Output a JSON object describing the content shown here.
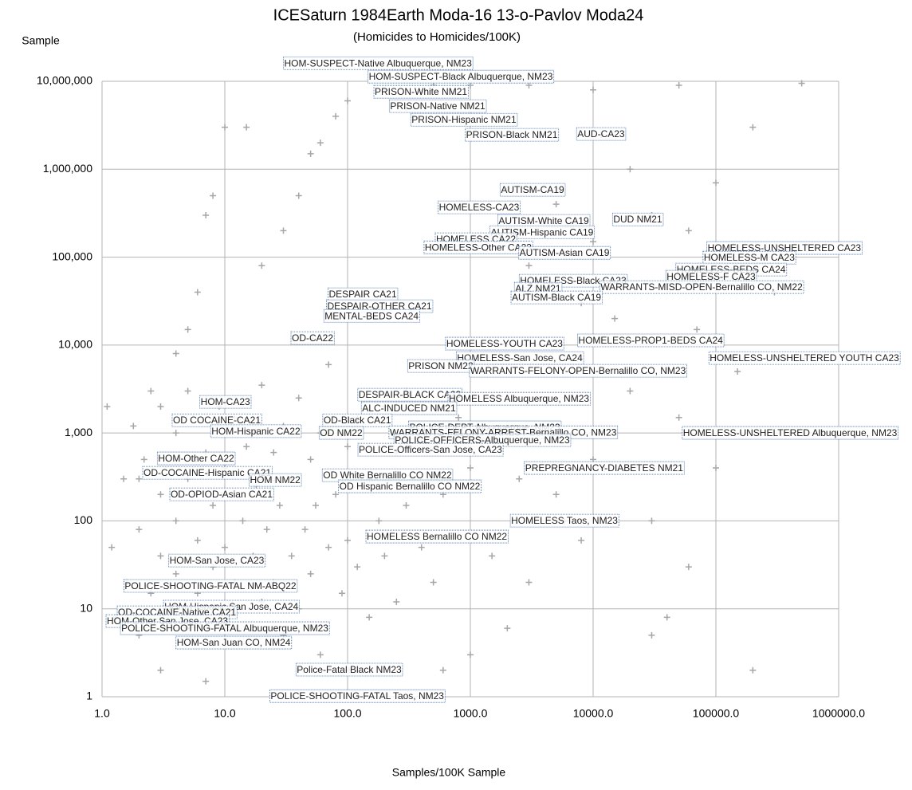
{
  "chart_data": {
    "type": "scatter",
    "title": "ICESaturn 1984Earth Moda-16 13-o-Pavlov Moda24",
    "subtitle": "(Homicides to Homicides/100K)",
    "y_label": "Sample",
    "x_label": "Samples/100K Sample",
    "log_x": true,
    "log_y": true,
    "grid": true,
    "xlim": [
      1,
      1000000
    ],
    "ylim": [
      1,
      10000000
    ],
    "xticks": [
      {
        "value": 1,
        "label": "1.0"
      },
      {
        "value": 10,
        "label": "10.0"
      },
      {
        "value": 100,
        "label": "100.0"
      },
      {
        "value": 1000,
        "label": "1000.0"
      },
      {
        "value": 10000,
        "label": "10000.0"
      },
      {
        "value": 100000,
        "label": "100000.0"
      },
      {
        "value": 1000000,
        "label": "1000000.0"
      }
    ],
    "yticks": [
      1,
      10,
      100,
      {
        "value": 1000,
        "label": "1,000"
      },
      {
        "value": 10000,
        "label": "10,000"
      },
      {
        "value": 100000,
        "label": "100,000"
      },
      {
        "value": 1000000,
        "label": "1,000,000"
      },
      {
        "value": 10000000,
        "label": "10,000,000"
      }
    ],
    "color": "#a6a6a6",
    "x": [
      2,
      3,
      4,
      5,
      6,
      7,
      8,
      10,
      15,
      20,
      30,
      40,
      50,
      60,
      80,
      100,
      200,
      300,
      500,
      1000,
      3000,
      10000,
      50000,
      500000,
      2000,
      5000,
      10000,
      20000,
      30000,
      60000,
      100000,
      200000,
      3000,
      8000,
      15000,
      40000,
      70000,
      150000,
      300000,
      20000,
      50000,
      100000,
      10000,
      5000,
      30000,
      60000,
      40000,
      30000,
      200000,
      8000,
      3000,
      2000,
      1000,
      600,
      1500,
      4000,
      6000,
      2500,
      1.1,
      1.2,
      1.3,
      1.5,
      1.6,
      1.8,
      2,
      2,
      2.2,
      2.5,
      2.5,
      3,
      3,
      3,
      3.5,
      4,
      4,
      4,
      5,
      5,
      5,
      6,
      6,
      7,
      7,
      8,
      8,
      9,
      10,
      10,
      10,
      12,
      12,
      14,
      15,
      15,
      17,
      18,
      20,
      20,
      22,
      25,
      25,
      28,
      30,
      30,
      35,
      35,
      40,
      40,
      45,
      50,
      50,
      55,
      60,
      60,
      70,
      70,
      80,
      90,
      100,
      100,
      120,
      120,
      150,
      150,
      180,
      200,
      200,
      250,
      250,
      300,
      300,
      400,
      400,
      500,
      600,
      800,
      800,
      1000
    ],
    "y": [
      300,
      2000,
      8000,
      15000,
      40000,
      300000,
      500000,
      3000000,
      3000000,
      80000,
      200000,
      500000,
      1500000,
      2000000,
      4000000,
      6000000,
      8000000,
      5000000,
      9000000,
      9000000,
      9000000,
      8000000,
      9000000,
      9500000,
      600000,
      400000,
      150000,
      1000000,
      300000,
      200000,
      700000,
      3000000,
      80000,
      30000,
      20000,
      50000,
      15000,
      5000,
      40000,
      3000,
      1500,
      400,
      500,
      200,
      100,
      30,
      8,
      5,
      2,
      60,
      20,
      6,
      3,
      2,
      40,
      1000,
      2500,
      300,
      2000,
      50,
      8,
      300,
      20,
      1200,
      5,
      80,
      500,
      15,
      3000,
      200,
      40,
      2,
      8,
      100,
      1000,
      25,
      300,
      6,
      3000,
      60,
      15,
      600,
      1.5,
      150,
      30,
      2000,
      50,
      8,
      400,
      20,
      1500,
      100,
      4,
      700,
      40,
      250,
      12,
      3500,
      80,
      600,
      20,
      150,
      5,
      1200,
      40,
      300,
      10,
      2500,
      80,
      500,
      25,
      150,
      3,
      1000,
      50,
      6000,
      200,
      15,
      700,
      60,
      30,
      1500,
      300,
      8,
      100,
      2000,
      40,
      600,
      12,
      150,
      3000,
      50,
      800,
      20,
      200,
      1500,
      70,
      400
    ],
    "annotations": [
      {
        "text": "HOM-SUSPECT-Native Albuquerque, NM23",
        "x": 177,
        "y": 15800000
      },
      {
        "text": "HOM-SUSPECT-Black Albuquerque, NM23",
        "x": 836,
        "y": 11100000
      },
      {
        "text": "PRISON-White NM21",
        "x": 396,
        "y": 7460000
      },
      {
        "text": "PRISON-Native NM21",
        "x": 542,
        "y": 5130000
      },
      {
        "text": "PRISON-Hispanic NM21",
        "x": 887,
        "y": 3590000
      },
      {
        "text": "PRISON-Black NM21",
        "x": 2177,
        "y": 2420000
      },
      {
        "text": "AUD-CA23",
        "x": 11600,
        "y": 2470000
      },
      {
        "text": "AUTISM-CA19",
        "x": 3210,
        "y": 573000
      },
      {
        "text": "HOMELESS-CA23",
        "x": 1178,
        "y": 362000
      },
      {
        "text": "DUD NM21",
        "x": 23100,
        "y": 264000
      },
      {
        "text": "AUTISM-White CA19",
        "x": 3960,
        "y": 254000
      },
      {
        "text": "AUTISM-Hispanic CA19",
        "x": 3840,
        "y": 189000
      },
      {
        "text": "HOMELESS CA22",
        "x": 1110,
        "y": 157000
      },
      {
        "text": "HOMELESS-Other CA23",
        "x": 1160,
        "y": 127000
      },
      {
        "text": "AUTISM-Asian CA19",
        "x": 5840,
        "y": 110000
      },
      {
        "text": "HOMELESS-UNSHELTERED CA23",
        "x": 361000,
        "y": 125000
      },
      {
        "text": "HOMELESS-M CA23",
        "x": 187000,
        "y": 97000
      },
      {
        "text": "HOMELESS-BEDS CA24",
        "x": 133000,
        "y": 71000
      },
      {
        "text": "HOMELESS-F CA23",
        "x": 91400,
        "y": 58900
      },
      {
        "text": "HOMELESS-Black CA23",
        "x": 6880,
        "y": 53000
      },
      {
        "text": "ALZ NM21",
        "x": 3560,
        "y": 43000
      },
      {
        "text": "WARRANTS-MISD-OPEN-Bernalillo CO, NM22",
        "x": 76400,
        "y": 44900
      },
      {
        "text": "AUTISM-Black CA19",
        "x": 5030,
        "y": 34200
      },
      {
        "text": "DESPAIR CA21",
        "x": 133,
        "y": 37200
      },
      {
        "text": "DESPAIR-OTHER CA21",
        "x": 182,
        "y": 27200
      },
      {
        "text": "MENTAL-BEDS CA24",
        "x": 157,
        "y": 21100
      },
      {
        "text": "OD-CA22",
        "x": 51.8,
        "y": 11800
      },
      {
        "text": "HOMELESS-YOUTH CA23",
        "x": 1900,
        "y": 10200
      },
      {
        "text": "HOMELESS-PROP1-BEDS CA24",
        "x": 29400,
        "y": 11100
      },
      {
        "text": "HOMELESS-UNSHELTERED YOUTH CA23",
        "x": 526000,
        "y": 7000
      },
      {
        "text": "HOMELESS-San Jose, CA24",
        "x": 2530,
        "y": 7000
      },
      {
        "text": "PRISON NM22",
        "x": 575,
        "y": 5680
      },
      {
        "text": "WARRANTS-FELONY-OPEN-Bernalillo CO, NM23",
        "x": 7530,
        "y": 5010
      },
      {
        "text": "DESPAIR-BLACK CA23",
        "x": 321,
        "y": 2680
      },
      {
        "text": "HOMELESS Albuquerque, NM23",
        "x": 2490,
        "y": 2410
      },
      {
        "text": "HOM-CA23",
        "x": 10.1,
        "y": 2220
      },
      {
        "text": "ALC-INDUCED NM21",
        "x": 316,
        "y": 1880
      },
      {
        "text": "OD-Black CA21",
        "x": 120,
        "y": 1370
      },
      {
        "text": "POLICE-DEPT Albuquerque, NM23",
        "x": 1310,
        "y": 1140
      },
      {
        "text": "OD COCAINE-CA21",
        "x": 8.61,
        "y": 1370
      },
      {
        "text": "HOM-Hispanic CA22",
        "x": 17.9,
        "y": 1030
      },
      {
        "text": "OD NM22",
        "x": 88.7,
        "y": 984
      },
      {
        "text": "WARRANTS-FELONY-ARREST-Bernalillo CO, NM23",
        "x": 1850,
        "y": 1000
      },
      {
        "text": "HOMELESS-UNSHELTERED Albuquerque, NM23",
        "x": 402000,
        "y": 984
      },
      {
        "text": "POLICE-OFFICERS-Albuquerque, NM23",
        "x": 1250,
        "y": 815
      },
      {
        "text": "POLICE-Officers-San Jose, CA23",
        "x": 473,
        "y": 634
      },
      {
        "text": "HOM-Other CA22",
        "x": 5.84,
        "y": 505
      },
      {
        "text": "PREPREGNANCY-DIABETES NM21",
        "x": 12300,
        "y": 393
      },
      {
        "text": "OD-COCAINE-Hispanic CA21",
        "x": 7.2,
        "y": 346
      },
      {
        "text": "OD White Bernalillo CO NM22",
        "x": 211,
        "y": 325
      },
      {
        "text": "HOM NM22",
        "x": 25.7,
        "y": 287
      },
      {
        "text": "OD Hispanic Bernalillo CO NM22",
        "x": 321,
        "y": 243
      },
      {
        "text": "OD-OPIOD-Asian CA21",
        "x": 9.42,
        "y": 197
      },
      {
        "text": "HOMELESS Taos, NM23",
        "x": 5840,
        "y": 98.9
      },
      {
        "text": "HOMELESS Bernalillo CO NM22",
        "x": 534,
        "y": 65.2
      },
      {
        "text": "HOM-San Jose, CA23",
        "x": 8.61,
        "y": 34.8
      },
      {
        "text": "POLICE-SHOOTING-FATAL NM-ABQ22",
        "x": 7.64,
        "y": 17.9
      },
      {
        "text": "HOM-Hispanic San Jose, CA24",
        "x": 11.3,
        "y": 10.4
      },
      {
        "text": "OD-COCAINE-Native CA21",
        "x": 4.08,
        "y": 8.97
      },
      {
        "text": "HOM-Other San Jose, CA23",
        "x": 3.41,
        "y": 7.13
      },
      {
        "text": "POLICE-SHOOTING-FATAL Albuquerque, NM23",
        "x": 10,
        "y": 5.91
      },
      {
        "text": "HOM-San Juan CO, NM24",
        "x": 11.8,
        "y": 4.06
      },
      {
        "text": "Police-Fatal Black NM23",
        "x": 103,
        "y": 2.0
      },
      {
        "text": "POLICE-SHOOTING-FATAL Taos, NM23",
        "x": 120,
        "y": 1.0
      }
    ]
  }
}
